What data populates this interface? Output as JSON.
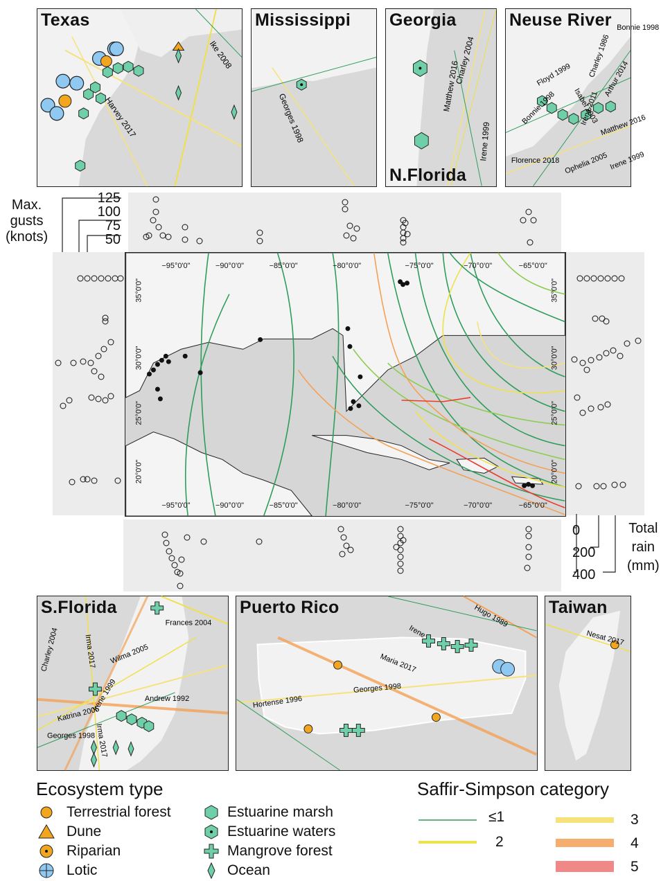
{
  "insets": {
    "texas": {
      "title": "Texas",
      "storms": [
        "Ike 2008",
        "Harvey 2017"
      ]
    },
    "mississippi": {
      "title": "Mississippi",
      "storms": [
        "Georges 1998"
      ]
    },
    "georgia": {
      "title": "Georgia",
      "subtitle": "N.Florida",
      "storms": [
        "Matthew 2016",
        "Charley 2004",
        "Irene 1999"
      ]
    },
    "neuse": {
      "title": "Neuse River",
      "storms": [
        "Bonnie 1998",
        "Floyd 1999",
        "Isabel 2003",
        "Charley 1986",
        "Bonnie 1998",
        "Arthur 2014",
        "Irene 2011",
        "Matthew 2016",
        "Ophelia 2005",
        "Florence 2018",
        "Irene 1999"
      ]
    },
    "sflorida": {
      "title": "S.Florida",
      "storms": [
        "Frances 2004",
        "Charley 2004",
        "Irma 2017",
        "Wilma 2005",
        "Irene 1999",
        "Andrew 1992",
        "Katrina 2005",
        "Irma 2017",
        "Georges 1998"
      ]
    },
    "puertorico": {
      "title": "Puerto Rico",
      "storms": [
        "Hugo 1989",
        "Irene",
        "Maria 2017",
        "Georges 1998",
        "Hortense 1996"
      ]
    },
    "taiwan": {
      "title": "Taiwan",
      "storms": [
        "Nesat 2017"
      ]
    }
  },
  "main_map": {
    "lon_ticks": [
      "−95°0'0\"",
      "−90°0'0\"",
      "−85°0'0\"",
      "−80°0'0\"",
      "−75°0'0\"",
      "−70°0'0\"",
      "−65°0'0\""
    ],
    "lat_ticks": [
      "35°0'0\"",
      "30°0'0\"",
      "25°0'0\"",
      "20°0'0\""
    ]
  },
  "gusts_axis": {
    "label_lines": [
      "Max.",
      "gusts",
      "(knots)"
    ],
    "ticks": [
      "125",
      "100",
      "75",
      "50"
    ]
  },
  "rain_axis": {
    "label_lines": [
      "Total",
      "rain",
      "(mm)"
    ],
    "ticks": [
      "0",
      "200",
      "400"
    ]
  },
  "legend": {
    "eco_title": "Ecosystem type",
    "eco_items": [
      "Terrestrial forest",
      "Dune",
      "Riparian",
      "Lotic",
      "Estuarine marsh",
      "Estuarine waters",
      "Mangrove forest",
      "Ocean"
    ],
    "ss_title": "Saffir-Simpson category",
    "ss_items": [
      "≤1",
      "2",
      "3",
      "4",
      "5"
    ]
  },
  "colors": {
    "cat1": "#2e9c5a",
    "cat2": "#f0e04a",
    "cat3": "#f6e27a",
    "cat4": "#f4a055",
    "cat5": "#ee6b6b",
    "marsh": "#6fcfa8",
    "lotic": "#8fc8f0",
    "riparian": "#f2a51e",
    "land": "#f4f4f4",
    "water": "#d6d6d6"
  }
}
